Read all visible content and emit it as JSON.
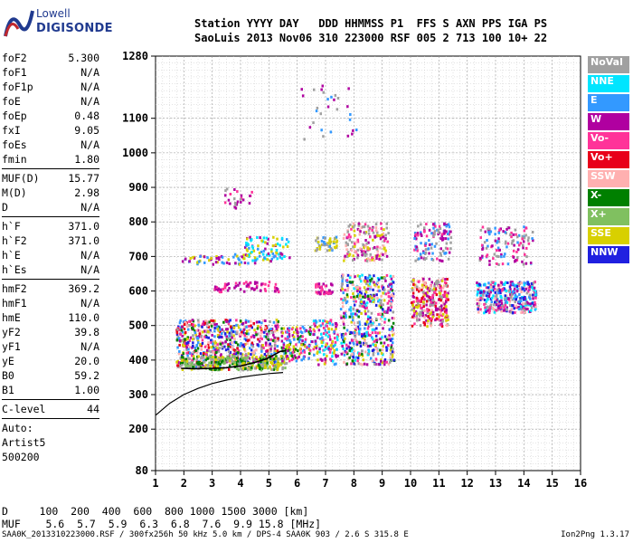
{
  "logo": {
    "line1": "Lowell",
    "line2": "DIGISONDE"
  },
  "header": {
    "labels": "Station YYYY DAY   DDD HHMMSS P1  FFS S AXN PPS IGA PS",
    "values": "SaoLuis 2013 Nov06 310 223000 RSF 005 2 713 100 10+ 22"
  },
  "sidebar": {
    "group1": [
      {
        "k": "foF2",
        "v": "5.300"
      },
      {
        "k": "foF1",
        "v": "N/A"
      },
      {
        "k": "foF1p",
        "v": "N/A"
      },
      {
        "k": "foE",
        "v": "N/A"
      },
      {
        "k": "foEp",
        "v": "0.48"
      },
      {
        "k": "fxI",
        "v": "9.05"
      },
      {
        "k": "foEs",
        "v": "N/A"
      },
      {
        "k": "fmin",
        "v": "1.80"
      }
    ],
    "group2": [
      {
        "k": "MUF(D)",
        "v": "15.77"
      },
      {
        "k": "M(D)",
        "v": "2.98"
      },
      {
        "k": "D",
        "v": "N/A"
      }
    ],
    "group3": [
      {
        "k": "h`F",
        "v": "371.0"
      },
      {
        "k": "h`F2",
        "v": "371.0"
      },
      {
        "k": "h`E",
        "v": "N/A"
      },
      {
        "k": "h`Es",
        "v": "N/A"
      }
    ],
    "group4": [
      {
        "k": "hmF2",
        "v": "369.2"
      },
      {
        "k": "hmF1",
        "v": "N/A"
      },
      {
        "k": "hmE",
        "v": "110.0"
      },
      {
        "k": "yF2",
        "v": "39.8"
      },
      {
        "k": "yF1",
        "v": "N/A"
      },
      {
        "k": "yE",
        "v": "20.0"
      },
      {
        "k": "B0",
        "v": "59.2"
      },
      {
        "k": "B1",
        "v": "1.00"
      }
    ],
    "group5": [
      {
        "k": "C-level",
        "v": "44"
      }
    ],
    "auto": [
      "Auto:",
      "Artist5",
      "500200"
    ]
  },
  "legend": [
    {
      "label": "NoVal",
      "color": "#a0a0a0"
    },
    {
      "label": "NNE",
      "color": "#00e5ff"
    },
    {
      "label": "E",
      "color": "#3399ff"
    },
    {
      "label": "W",
      "color": "#b000a0"
    },
    {
      "label": "Vo-",
      "color": "#ff3399"
    },
    {
      "label": "Vo+",
      "color": "#e8001a"
    },
    {
      "label": "SSW",
      "color": "#ffb0b0"
    },
    {
      "label": "X-",
      "color": "#008000"
    },
    {
      "label": "X+",
      "color": "#80c060"
    },
    {
      "label": "SSE",
      "color": "#d8d000"
    },
    {
      "label": "NNW",
      "color": "#2020e0"
    }
  ],
  "footer": {
    "d_line": "D     100  200  400  600  800 1000 1500 3000 [km]",
    "muf_line": "MUF    5.6  5.7  5.9  6.3  6.8  7.6  9.9 15.8 [MHz]",
    "file_line": "SAA0K_2013310223000.RSF / 300fx256h 50 kHz 5.0 km / DPS-4 SAA0K 903 / 2.6 S 315.8 E",
    "version": "Ion2Png 1.3.17"
  },
  "chart_data": {
    "type": "scatter",
    "x_ticks": [
      "1",
      "2",
      "3",
      "4",
      "5",
      "6",
      "7",
      "8",
      "9",
      "10",
      "11",
      "12",
      "13",
      "14",
      "15",
      "16"
    ],
    "y_ticks": [
      "80",
      "200",
      "300",
      "400",
      "500",
      "600",
      "700",
      "800",
      "900",
      "1000",
      "1100",
      "1280"
    ],
    "xlim": [
      1,
      16
    ],
    "ylim": [
      80,
      1280
    ],
    "grid": true,
    "clusters": [
      {
        "x": [
          1.7,
          5.3
        ],
        "y": [
          375,
          520
        ],
        "n": 700,
        "colors": [
          "#b000a0",
          "#ff3399",
          "#e8001a",
          "#3399ff",
          "#008000",
          "#d8d000",
          "#2020e0",
          "#ffb0b0",
          "#a0a0a0"
        ]
      },
      {
        "x": [
          1.8,
          5.6
        ],
        "y": [
          375,
          415
        ],
        "n": 260,
        "colors": [
          "#008000",
          "#80c060",
          "#d8d000",
          "#a0a0a0"
        ]
      },
      {
        "x": [
          4.1,
          5.7
        ],
        "y": [
          690,
          760
        ],
        "n": 90,
        "colors": [
          "#3399ff",
          "#00e5ff",
          "#d8d000",
          "#b000a0"
        ]
      },
      {
        "x": [
          3.0,
          5.4
        ],
        "y": [
          600,
          630
        ],
        "n": 70,
        "colors": [
          "#b000a0",
          "#ff3399"
        ]
      },
      {
        "x": [
          1.9,
          4.5
        ],
        "y": [
          680,
          710
        ],
        "n": 60,
        "colors": [
          "#d8d000",
          "#3399ff",
          "#b000a0"
        ]
      },
      {
        "x": [
          5.4,
          6.5
        ],
        "y": [
          400,
          500
        ],
        "n": 140,
        "colors": [
          "#3399ff",
          "#b000a0",
          "#ff3399",
          "#008000",
          "#d8d000"
        ]
      },
      {
        "x": [
          6.5,
          7.4
        ],
        "y": [
          390,
          520
        ],
        "n": 130,
        "colors": [
          "#3399ff",
          "#b000a0",
          "#ff3399",
          "#d8d000",
          "#00e5ff"
        ]
      },
      {
        "x": [
          6.6,
          7.2
        ],
        "y": [
          595,
          625
        ],
        "n": 40,
        "colors": [
          "#b000a0",
          "#ff3399"
        ]
      },
      {
        "x": [
          6.6,
          7.4
        ],
        "y": [
          720,
          760
        ],
        "n": 50,
        "colors": [
          "#d8d000",
          "#3399ff",
          "#a0a0a0"
        ]
      },
      {
        "x": [
          7.5,
          9.4
        ],
        "y": [
          390,
          650
        ],
        "n": 520,
        "colors": [
          "#2020e0",
          "#3399ff",
          "#b000a0",
          "#ff3399",
          "#d8d000",
          "#00e5ff",
          "#008000",
          "#a0a0a0",
          "#ffb0b0"
        ]
      },
      {
        "x": [
          7.6,
          9.2
        ],
        "y": [
          690,
          800
        ],
        "n": 160,
        "colors": [
          "#ffb0b0",
          "#a0a0a0",
          "#d8d000",
          "#ff3399",
          "#b000a0"
        ]
      },
      {
        "x": [
          10.0,
          11.3
        ],
        "y": [
          500,
          640
        ],
        "n": 280,
        "colors": [
          "#e8001a",
          "#ff3399",
          "#b000a0",
          "#d8d000",
          "#a0a0a0",
          "#ffb0b0"
        ]
      },
      {
        "x": [
          10.1,
          11.4
        ],
        "y": [
          690,
          800
        ],
        "n": 120,
        "colors": [
          "#3399ff",
          "#b000a0",
          "#ff3399",
          "#a0a0a0"
        ]
      },
      {
        "x": [
          12.3,
          14.4
        ],
        "y": [
          540,
          630
        ],
        "n": 360,
        "colors": [
          "#2020e0",
          "#3399ff",
          "#b000a0",
          "#ff3399",
          "#ffb0b0",
          "#a0a0a0",
          "#00e5ff"
        ]
      },
      {
        "x": [
          12.4,
          14.3
        ],
        "y": [
          680,
          790
        ],
        "n": 120,
        "colors": [
          "#b000a0",
          "#ff3399",
          "#a0a0a0",
          "#3399ff"
        ]
      },
      {
        "x": [
          6.0,
          8.1
        ],
        "y": [
          1040,
          1200
        ],
        "n": 30,
        "colors": [
          "#3399ff",
          "#b000a0",
          "#a0a0a0"
        ]
      },
      {
        "x": [
          3.4,
          4.4
        ],
        "y": [
          840,
          900
        ],
        "n": 25,
        "colors": [
          "#b000a0",
          "#ff3399",
          "#a0a0a0"
        ]
      }
    ],
    "trace_curve": [
      [
        1.0,
        240
      ],
      [
        1.5,
        275
      ],
      [
        2.0,
        300
      ],
      [
        2.5,
        318
      ],
      [
        3.0,
        332
      ],
      [
        3.5,
        342
      ],
      [
        4.0,
        350
      ],
      [
        4.5,
        356
      ],
      [
        5.0,
        361
      ],
      [
        5.5,
        364
      ]
    ],
    "trace_upper": [
      [
        1.9,
        376
      ],
      [
        2.5,
        375
      ],
      [
        3.0,
        376
      ],
      [
        3.5,
        378
      ],
      [
        4.0,
        383
      ],
      [
        4.5,
        393
      ],
      [
        4.9,
        403
      ],
      [
        5.2,
        416
      ],
      [
        5.4,
        425
      ],
      [
        5.6,
        427
      ]
    ]
  }
}
